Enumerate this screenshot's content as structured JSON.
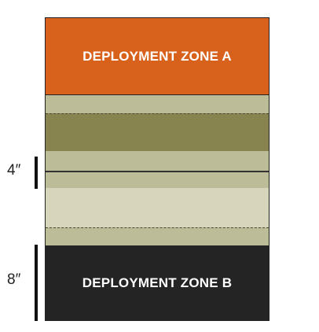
{
  "map": {
    "zone_a_label": "DEPLOYMENT ZONE A",
    "zone_b_label": "DEPLOYMENT ZONE B",
    "colors": {
      "zone_a": "#d8611b",
      "zone_b": "#242424",
      "terrain_light": "#d7d6bd",
      "terrain_mid": "#bdbc98",
      "terrain_dark": "#87844f"
    }
  },
  "measurements": {
    "four_inch_label": "4″",
    "eight_inch_label": "8″"
  }
}
